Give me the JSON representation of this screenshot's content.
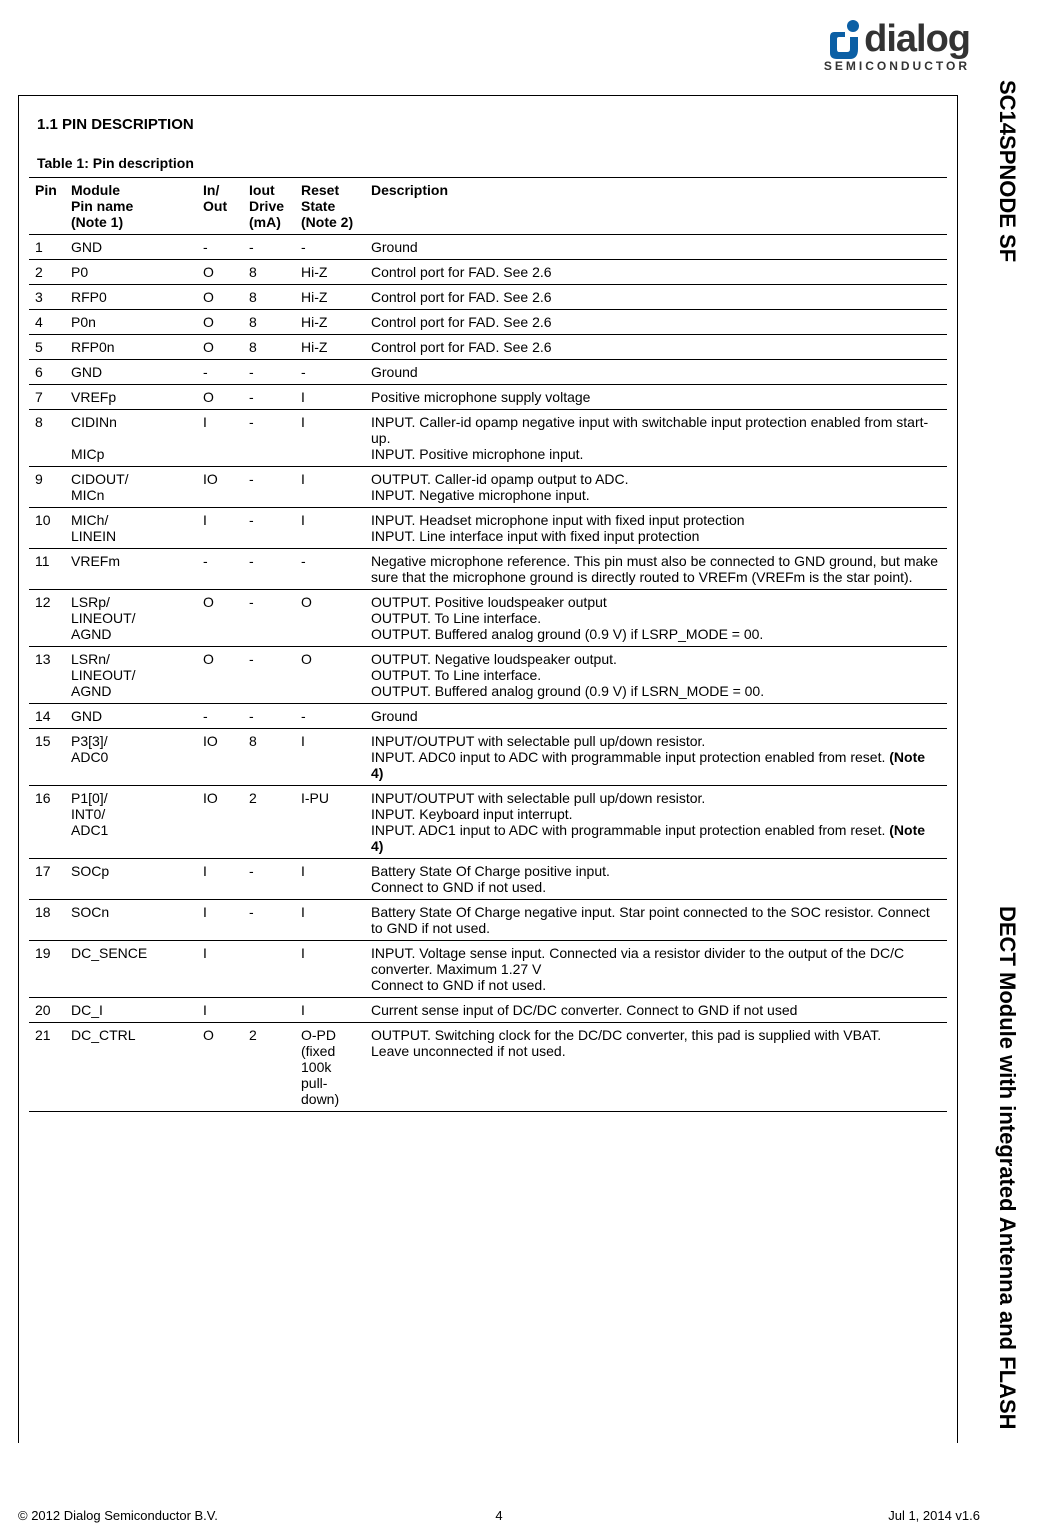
{
  "brand": {
    "logo_text": "dialog",
    "logo_sub": "SEMICONDUCTOR",
    "brand_color": "#0b5fa5",
    "text_color": "#333333"
  },
  "side_bar": {
    "title_top": "SC14SPNODE SF",
    "title_bottom": "DECT Module with integrated Antenna and FLASH"
  },
  "section": {
    "heading": "1.1  PIN DESCRIPTION",
    "table_title": "Table 1: Pin description"
  },
  "table": {
    "columns": {
      "pin": "Pin",
      "name": "Module\nPin name\n(Note 1)",
      "io": "In/\nOut",
      "drive": "Iout\nDrive\n(mA)",
      "reset": "Reset\nState\n(Note 2)",
      "desc": "Description"
    },
    "rows": [
      {
        "pin": "1",
        "name": "GND",
        "io": "-",
        "drive": "-",
        "reset": "-",
        "desc": "Ground"
      },
      {
        "pin": "2",
        "name": "P0",
        "io": "O",
        "drive": "8",
        "reset": "Hi-Z",
        "desc": "Control port for FAD. See 2.6"
      },
      {
        "pin": "3",
        "name": "RFP0",
        "io": "O",
        "drive": "8",
        "reset": "Hi-Z",
        "desc": "Control port for FAD. See 2.6"
      },
      {
        "pin": "4",
        "name": "P0n",
        "io": "O",
        "drive": "8",
        "reset": "Hi-Z",
        "desc": "Control port for FAD. See 2.6"
      },
      {
        "pin": "5",
        "name": "RFP0n",
        "io": "O",
        "drive": "8",
        "reset": "Hi-Z",
        "desc": "Control port for FAD. See 2.6"
      },
      {
        "pin": "6",
        "name": "GND",
        "io": "-",
        "drive": "-",
        "reset": "-",
        "desc": "Ground"
      },
      {
        "pin": "7",
        "name": "VREFp",
        "io": "O",
        "drive": "-",
        "reset": "I",
        "desc": "Positive microphone supply voltage"
      },
      {
        "pin": "8",
        "name": "CIDINn\n\nMICp",
        "io": "I",
        "drive": "-",
        "reset": "I",
        "desc": "INPUT. Caller-id opamp negative input with switchable input protection enabled from start-up.\nINPUT. Positive microphone input."
      },
      {
        "pin": "9",
        "name": "CIDOUT/\nMICn",
        "io": "IO",
        "drive": "-",
        "reset": "I",
        "desc": "OUTPUT. Caller-id opamp output to ADC.\nINPUT. Negative microphone input."
      },
      {
        "pin": "10",
        "name": "MICh/\nLINEIN",
        "io": "I",
        "drive": "-",
        "reset": "I",
        "desc": "INPUT. Headset microphone input with fixed input protection\nINPUT. Line interface input with fixed input protection"
      },
      {
        "pin": "11",
        "name": "VREFm",
        "io": "-",
        "drive": "-",
        "reset": "-",
        "desc": "Negative microphone reference. This pin must also be connected to GND ground, but make sure that the microphone ground is directly routed to VREFm (VREFm is the star point)."
      },
      {
        "pin": "12",
        "name": "LSRp/\nLINEOUT/\nAGND",
        "io": "O",
        "drive": "-",
        "reset": "O",
        "desc": "OUTPUT. Positive loudspeaker output\nOUTPUT. To Line interface.\nOUTPUT. Buffered analog ground (0.9 V) if LSRP_MODE = 00."
      },
      {
        "pin": "13",
        "name": "LSRn/\nLINEOUT/\nAGND",
        "io": "O",
        "drive": "-",
        "reset": "O",
        "desc": "OUTPUT. Negative loudspeaker output.\nOUTPUT. To Line interface.\nOUTPUT. Buffered analog ground (0.9 V) if LSRN_MODE = 00."
      },
      {
        "pin": "14",
        "name": "GND",
        "io": "-",
        "drive": "-",
        "reset": "-",
        "desc": "Ground"
      },
      {
        "pin": "15",
        "name": "P3[3]/\nADC0",
        "io": "IO",
        "drive": "8",
        "reset": "I",
        "desc": "INPUT/OUTPUT with selectable pull up/down resistor.\nINPUT. ADC0 input to ADC with programmable input protection enabled from reset. <b>(Note 4)</b>"
      },
      {
        "pin": "16",
        "name": "P1[0]/\nINT0/\nADC1",
        "io": "IO",
        "drive": "2",
        "reset": "I-PU",
        "desc": "INPUT/OUTPUT with selectable pull up/down resistor.\nINPUT. Keyboard input interrupt.\nINPUT. ADC1 input to ADC with programmable input protection enabled from reset. <b>(Note 4)</b>"
      },
      {
        "pin": "17",
        "name": "SOCp",
        "io": "I",
        "drive": "-",
        "reset": "I",
        "desc": "Battery State Of Charge positive input.\nConnect to GND if not used."
      },
      {
        "pin": "18",
        "name": "SOCn",
        "io": "I",
        "drive": "-",
        "reset": "I",
        "desc": "Battery State Of Charge negative input. Star point connected to the SOC resistor. Connect to GND if not used."
      },
      {
        "pin": "19",
        "name": "DC_SENCE",
        "io": "I",
        "drive": "",
        "reset": "I",
        "desc": "INPUT. Voltage sense input. Connected via a resistor divider to the output of the DC/C converter. Maximum 1.27 V\nConnect to GND if not used."
      },
      {
        "pin": "20",
        "name": "DC_I",
        "io": "I",
        "drive": "",
        "reset": "I",
        "desc": "Current sense input of DC/DC converter. Connect to GND if not used"
      },
      {
        "pin": "21",
        "name": "DC_CTRL",
        "io": "O",
        "drive": "2",
        "reset": "O-PD\n(fixed\n100k\npull-down)",
        "desc": "OUTPUT. Switching clock for the DC/DC converter, this pad is supplied with VBAT.\nLeave unconnected if not used."
      }
    ]
  },
  "footer": {
    "copyright": "© 2012 Dialog Semiconductor B.V.",
    "page_no": "4",
    "date_ver": "Jul 1, 2014 v1.6"
  }
}
